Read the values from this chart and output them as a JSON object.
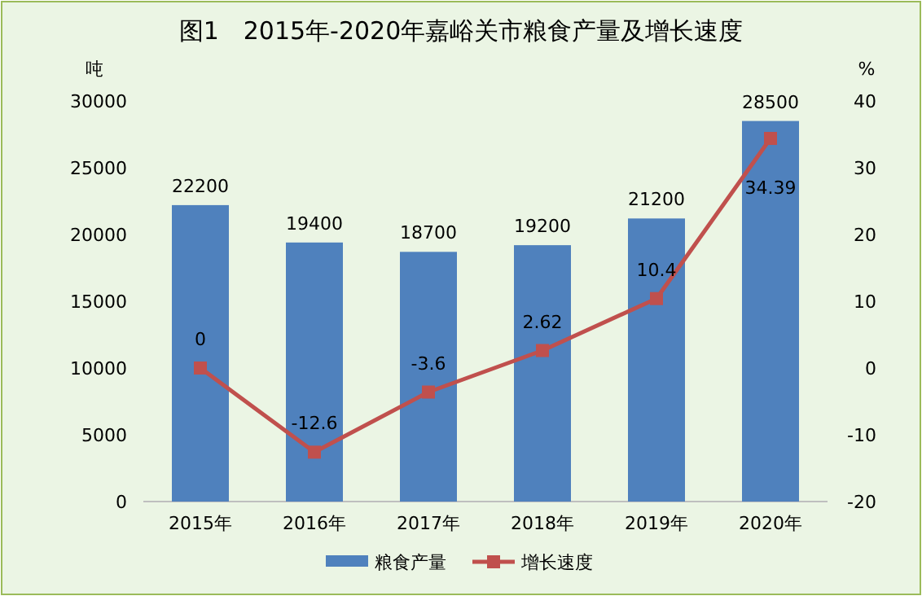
{
  "chart_data": {
    "type": "bar",
    "title": "图1　2015年-2020年嘉峪关市粮食产量及增长速度",
    "ylabel": "吨",
    "y2label": "%",
    "categories": [
      "2015年",
      "2016年",
      "2017年",
      "2018年",
      "2019年",
      "2020年"
    ],
    "series": [
      {
        "name": "粮食产量",
        "color": "#4f81bd",
        "values": [
          22200,
          19400,
          18700,
          19200,
          21200,
          28500
        ]
      },
      {
        "name": "增长速度",
        "type": "line",
        "axis": "y2",
        "color": "#c0504d",
        "marker": "square",
        "values": [
          0,
          -12.6,
          -3.6,
          2.62,
          10.4,
          34.39
        ]
      }
    ],
    "ylim": [
      0,
      30000
    ],
    "yticks": [
      0,
      5000,
      10000,
      15000,
      20000,
      25000,
      30000
    ],
    "y2lim": [
      -20,
      40
    ],
    "y2ticks": [
      -20,
      -10,
      0,
      10,
      20,
      30,
      40
    ],
    "data_labels": true,
    "legend": "bottom"
  }
}
